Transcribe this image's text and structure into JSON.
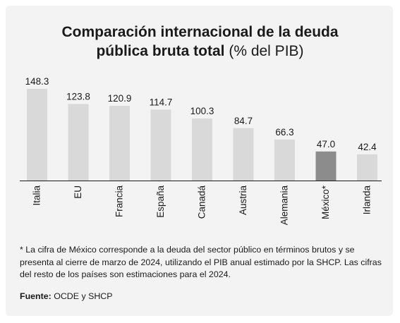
{
  "title": {
    "line1": "Comparación internacional de la deuda",
    "line2_bold": "pública bruta total",
    "line2_unit": "(% del PIB)"
  },
  "chart_data": {
    "type": "bar",
    "title": "Comparación internacional de la deuda pública bruta total (% del PIB)",
    "xlabel": "",
    "ylabel": "",
    "categories": [
      "Italia",
      "EU",
      "Francia",
      "España",
      "Canadá",
      "Austria",
      "Alemania",
      "México*",
      "Irlanda"
    ],
    "values": [
      148.3,
      123.8,
      120.9,
      114.7,
      100.3,
      84.7,
      66.3,
      47.0,
      42.4
    ],
    "value_labels": [
      "148.3",
      "123.8",
      "120.9",
      "114.7",
      "100.3",
      "84.7",
      "66.3",
      "47.0",
      "42.4"
    ],
    "ylim": [
      0,
      148.3
    ],
    "grid": false,
    "legend": "none",
    "colors": {
      "bar": "#d9d9d9",
      "highlight": "#8c8c8c",
      "highlight_category": "México*",
      "baseline": "#1a1a1a"
    }
  },
  "note": "* La cifra de México corresponde a la deuda del sector público en términos brutos y se presenta al cierre de marzo de 2024, utilizando el PIB anual estimado por la SHCP. Las cifras del resto de los países son estimaciones para el 2024.",
  "source": {
    "label": "Fuente:",
    "text": "OCDE y SHCP"
  }
}
